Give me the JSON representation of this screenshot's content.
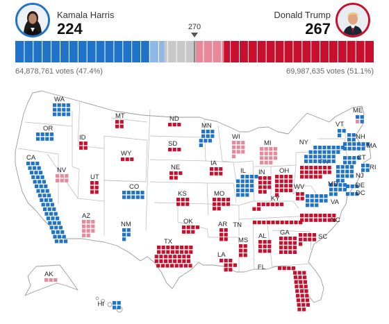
{
  "harris": {
    "name": "Kamala Harris",
    "electoral_votes": "224",
    "popular_votes": "64,878,761 votes (47.4%)",
    "color": "#1f73c9"
  },
  "trump": {
    "name": "Donald Trump",
    "electoral_votes": "267",
    "popular_votes": "69,987,635 votes (51.1%)",
    "color": "#c8102e"
  },
  "threshold": "270",
  "colors": {
    "dem": "#1f73c9",
    "rep": "#c8102e",
    "lean_dem": "#8fb8e6",
    "lean_rep": "#e8899a",
    "uncalled": "#c8c8c8"
  },
  "bar": {
    "dem_solid": 201,
    "dem_lean": 23,
    "uncalled": 47,
    "rep_lean": 42,
    "rep_solid": 225,
    "total": 538
  },
  "states": [
    {
      "abbr": "WA",
      "ev": 12,
      "status": "dem"
    },
    {
      "abbr": "OR",
      "ev": 8,
      "status": "dem"
    },
    {
      "abbr": "CA",
      "ev": 54,
      "status": "dem"
    },
    {
      "abbr": "ID",
      "ev": 4,
      "status": "rep"
    },
    {
      "abbr": "NV",
      "ev": 6,
      "status": "lean_rep"
    },
    {
      "abbr": "UT",
      "ev": 6,
      "status": "rep"
    },
    {
      "abbr": "AZ",
      "ev": 11,
      "status": "lean_rep"
    },
    {
      "abbr": "MT",
      "ev": 4,
      "status": "rep"
    },
    {
      "abbr": "WY",
      "ev": 3,
      "status": "rep"
    },
    {
      "abbr": "CO",
      "ev": 10,
      "status": "dem"
    },
    {
      "abbr": "NM",
      "ev": 5,
      "status": "dem"
    },
    {
      "abbr": "ND",
      "ev": 3,
      "status": "rep"
    },
    {
      "abbr": "SD",
      "ev": 3,
      "status": "rep"
    },
    {
      "abbr": "NE",
      "ev": 5,
      "status": "rep"
    },
    {
      "abbr": "KS",
      "ev": 6,
      "status": "rep"
    },
    {
      "abbr": "OK",
      "ev": 7,
      "status": "rep"
    },
    {
      "abbr": "TX",
      "ev": 40,
      "status": "rep"
    },
    {
      "abbr": "MN",
      "ev": 10,
      "status": "dem"
    },
    {
      "abbr": "IA",
      "ev": 6,
      "status": "rep"
    },
    {
      "abbr": "MO",
      "ev": 10,
      "status": "rep"
    },
    {
      "abbr": "AR",
      "ev": 6,
      "status": "rep"
    },
    {
      "abbr": "LA",
      "ev": 8,
      "status": "rep"
    },
    {
      "abbr": "WI",
      "ev": 10,
      "status": "lean_rep"
    },
    {
      "abbr": "IL",
      "ev": 19,
      "status": "dem"
    },
    {
      "abbr": "MI",
      "ev": 15,
      "status": "lean_rep"
    },
    {
      "abbr": "IN",
      "ev": 11,
      "status": "rep"
    },
    {
      "abbr": "OH",
      "ev": 17,
      "status": "rep"
    },
    {
      "abbr": "KY",
      "ev": 8,
      "status": "rep"
    },
    {
      "abbr": "TN",
      "ev": 11,
      "status": "rep"
    },
    {
      "abbr": "MS",
      "ev": 6,
      "status": "rep"
    },
    {
      "abbr": "AL",
      "ev": 9,
      "status": "rep"
    },
    {
      "abbr": "GA",
      "ev": 16,
      "status": "rep"
    },
    {
      "abbr": "FL",
      "ev": 30,
      "status": "rep"
    },
    {
      "abbr": "SC",
      "ev": 9,
      "status": "rep"
    },
    {
      "abbr": "NC",
      "ev": 16,
      "status": "rep"
    },
    {
      "abbr": "VA",
      "ev": 13,
      "status": "dem"
    },
    {
      "abbr": "WV",
      "ev": 4,
      "status": "rep"
    },
    {
      "abbr": "PA",
      "ev": 19,
      "status": "rep"
    },
    {
      "abbr": "NY",
      "ev": 28,
      "status": "dem"
    },
    {
      "abbr": "ME",
      "ev": 4,
      "status": "mixed"
    },
    {
      "abbr": "VT",
      "ev": 3,
      "status": "dem"
    },
    {
      "abbr": "NH",
      "ev": 4,
      "status": "dem"
    },
    {
      "abbr": "MA",
      "ev": 11,
      "status": "dem"
    },
    {
      "abbr": "RI",
      "ev": 4,
      "status": "dem"
    },
    {
      "abbr": "CT",
      "ev": 7,
      "status": "dem"
    },
    {
      "abbr": "NJ",
      "ev": 14,
      "status": "dem"
    },
    {
      "abbr": "DE",
      "ev": 3,
      "status": "dem"
    },
    {
      "abbr": "MD",
      "ev": 10,
      "status": "dem"
    },
    {
      "abbr": "DC",
      "ev": 3,
      "status": "dem"
    },
    {
      "abbr": "AK",
      "ev": 3,
      "status": "lean_rep"
    },
    {
      "abbr": "HI",
      "ev": 4,
      "status": "dem"
    }
  ]
}
